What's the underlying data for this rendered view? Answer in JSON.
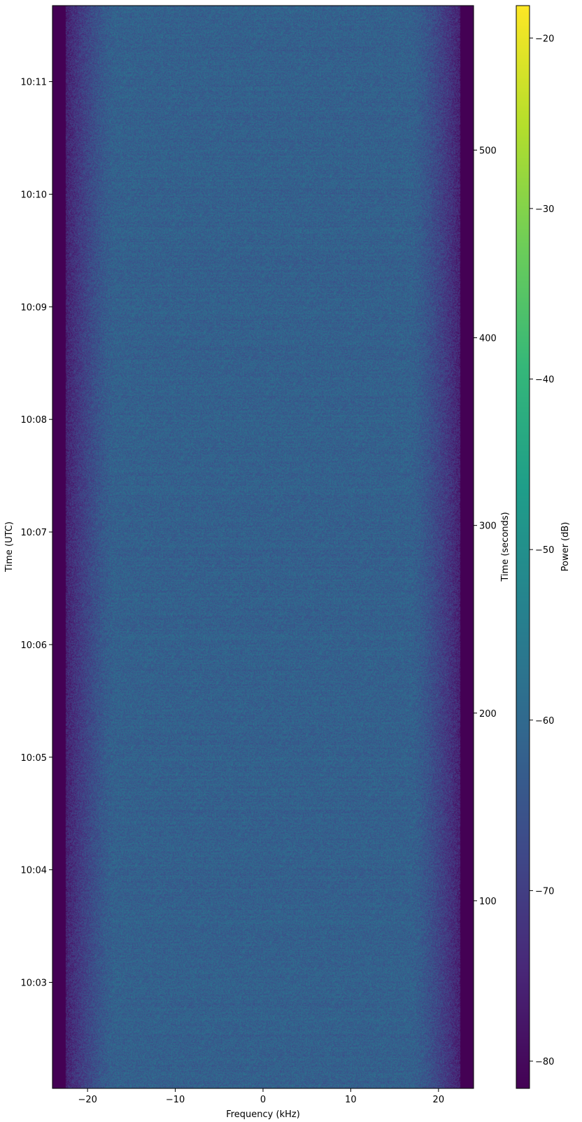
{
  "chart_data": {
    "type": "heatmap",
    "xlabel": "Frequency (kHz)",
    "ylabel_left": "Time (UTC)",
    "ylabel_right": "Time (seconds)",
    "colorbar_label": "Power (dB)",
    "colormap": "viridis",
    "xlim": [
      -24,
      24
    ],
    "ylim_seconds": [
      0,
      577
    ],
    "clim": [
      -81.6,
      -18.1
    ],
    "x_ticks": [
      -20,
      -10,
      0,
      10,
      20
    ],
    "x_tick_labels": [
      "−20",
      "−10",
      "0",
      "10",
      "20"
    ],
    "y_right_ticks": [
      100,
      200,
      300,
      400,
      500
    ],
    "y_right_tick_labels": [
      "100",
      "200",
      "300",
      "400",
      "500"
    ],
    "y_left_ticks": [
      {
        "label": "10:03",
        "seconds": 56.5
      },
      {
        "label": "10:04",
        "seconds": 116.5
      },
      {
        "label": "10:05",
        "seconds": 176.5
      },
      {
        "label": "10:06",
        "seconds": 236.5
      },
      {
        "label": "10:07",
        "seconds": 296.5
      },
      {
        "label": "10:08",
        "seconds": 356.5
      },
      {
        "label": "10:09",
        "seconds": 416.5
      },
      {
        "label": "10:10",
        "seconds": 476.5
      },
      {
        "label": "10:11",
        "seconds": 536.5
      }
    ],
    "colorbar_ticks": [
      -80,
      -70,
      -60,
      -50,
      -40,
      -30,
      -20
    ],
    "colorbar_tick_labels": [
      "−80",
      "−70",
      "−60",
      "−50",
      "−40",
      "−30",
      "−20"
    ],
    "signal": {
      "passband_kHz": [
        -17,
        17
      ],
      "passband_power_dB": -62,
      "rolloff_edge_kHz": [
        -22.5,
        22.5
      ],
      "noise_floor_dB": -81.6
    }
  }
}
